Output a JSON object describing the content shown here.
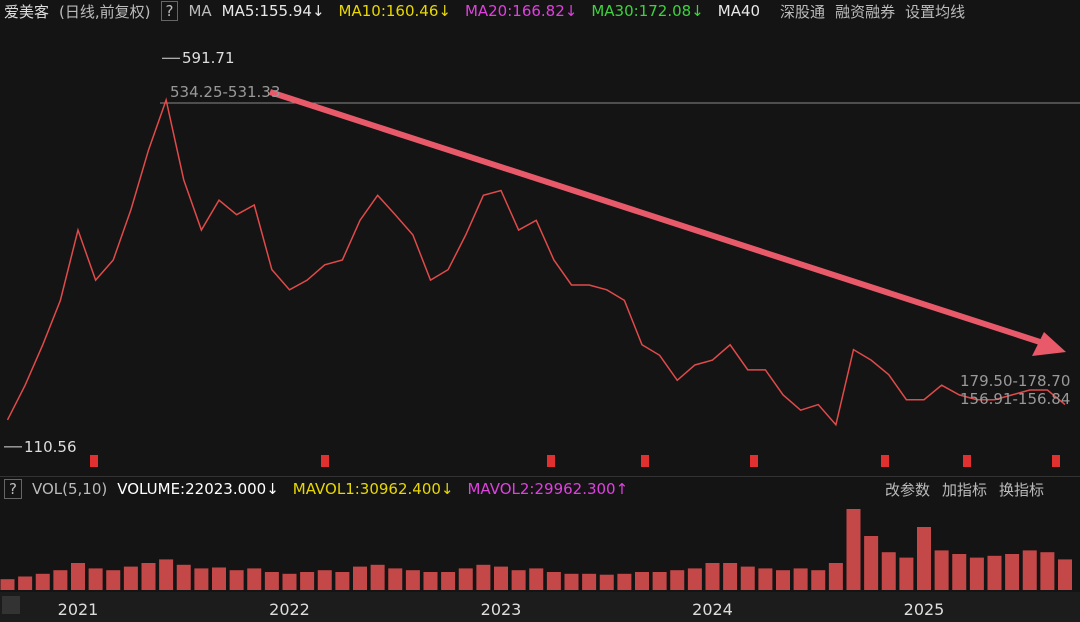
{
  "toolbar": {
    "name": "爱美客",
    "mode": "(日线,前复权)",
    "help": "?",
    "ma": "MA",
    "indicators": [
      {
        "text": "MA5:155.94↓",
        "color": "#e8e8e8"
      },
      {
        "text": "MA10:160.46↓",
        "color": "#e8d800"
      },
      {
        "text": "MA20:166.82↓",
        "color": "#e040e0"
      },
      {
        "text": "MA30:172.08↓",
        "color": "#3ed23e"
      },
      {
        "text": "MA40",
        "color": "#e8e8e8"
      }
    ],
    "links": [
      "深股通",
      "融资融券",
      "设置均线"
    ]
  },
  "volume_bar": {
    "help": "?",
    "name": "VOL(5,10)",
    "items": [
      {
        "text": "VOLUME:22023.000↓",
        "color": "#ffffff"
      },
      {
        "text": "MAVOL1:30962.400↓",
        "color": "#e8d800"
      },
      {
        "text": "MAVOL2:29962.300↑",
        "color": "#e040e0"
      }
    ],
    "buttons": [
      "改参数",
      "加指标",
      "换指标"
    ]
  },
  "chart_data": [
    {
      "type": "line",
      "color": "#e04a4a",
      "categories": [
        null,
        null,
        null,
        null,
        "2021",
        null,
        null,
        null,
        null,
        null,
        null,
        null,
        null,
        null,
        null,
        null,
        "2022",
        null,
        null,
        null,
        null,
        null,
        null,
        null,
        null,
        null,
        null,
        null,
        "2023",
        null,
        null,
        null,
        null,
        null,
        null,
        null,
        null,
        null,
        null,
        null,
        "2024",
        null,
        null,
        null,
        null,
        null,
        null,
        null,
        null,
        null,
        null,
        null,
        "2025",
        null,
        null,
        null,
        null,
        null,
        null,
        null,
        null
      ],
      "values": [
        144,
        187,
        237,
        292,
        379,
        317,
        342,
        404,
        478,
        540,
        441,
        379,
        416,
        398,
        410,
        330,
        305,
        317,
        336,
        342,
        391,
        422,
        398,
        373,
        317,
        330,
        373,
        422,
        428,
        379,
        391,
        342,
        311,
        311,
        305,
        292,
        237,
        224,
        193,
        212,
        218,
        237,
        206,
        206,
        175,
        156,
        163,
        138,
        231,
        218,
        200,
        169,
        169,
        187,
        175,
        169,
        169,
        175,
        181,
        181,
        163
      ],
      "ylim": [
        82,
        639
      ],
      "high": 591.71,
      "low": 110.56,
      "annotations": [
        "534.25-531.33",
        "179.50-178.70",
        "156.91-156.84"
      ]
    },
    {
      "type": "bar",
      "color": "#c44848",
      "values": [
        12000,
        15000,
        18000,
        22000,
        30000,
        24000,
        22000,
        26000,
        30000,
        34000,
        28000,
        24000,
        25000,
        22000,
        24000,
        20000,
        18000,
        20000,
        22000,
        20000,
        26000,
        28000,
        24000,
        22000,
        20000,
        20000,
        24000,
        28000,
        26000,
        22000,
        24000,
        20000,
        18000,
        18000,
        17000,
        18000,
        20000,
        20000,
        22000,
        24000,
        30000,
        30000,
        26000,
        24000,
        22000,
        24000,
        22000,
        30000,
        90000,
        60000,
        42000,
        36000,
        70000,
        44000,
        40000,
        36000,
        38000,
        40000,
        44000,
        42000,
        34000
      ],
      "ylim": [
        0,
        100000
      ]
    }
  ]
}
